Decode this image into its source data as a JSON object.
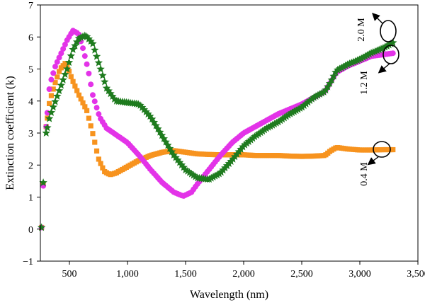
{
  "chart_data": {
    "type": "scatter",
    "xlabel": "Wavelength (nm)",
    "ylabel": "Extinction coefficient (k)",
    "xlim": [
      250,
      3500
    ],
    "ylim": [
      -1,
      7
    ],
    "xticks": [
      500,
      1000,
      1500,
      2000,
      2500,
      3000,
      3500
    ],
    "xtick_labels": [
      "500",
      "1,000",
      "1,500",
      "2,000",
      "2,500",
      "3,000",
      "3,500"
    ],
    "yticks": [
      -1,
      0,
      1,
      2,
      3,
      4,
      5,
      6,
      7
    ],
    "ytick_labels": [
      "−1",
      "0",
      "1",
      "2",
      "3",
      "4",
      "5",
      "6",
      "7"
    ],
    "grid": false,
    "series": [
      {
        "marker": "square",
        "color": "#F7931E",
        "points": [
          [
            260,
            0.05
          ],
          [
            275,
            1.4
          ],
          [
            300,
            3.2
          ],
          [
            330,
            4.0
          ],
          [
            380,
            4.6
          ],
          [
            420,
            5.0
          ],
          [
            470,
            5.2
          ],
          [
            520,
            4.7
          ],
          [
            580,
            4.2
          ],
          [
            650,
            3.7
          ],
          [
            700,
            3.0
          ],
          [
            750,
            2.2
          ],
          [
            800,
            1.8
          ],
          [
            850,
            1.7
          ],
          [
            900,
            1.75
          ],
          [
            1000,
            1.95
          ],
          [
            1100,
            2.15
          ],
          [
            1200,
            2.3
          ],
          [
            1300,
            2.4
          ],
          [
            1400,
            2.45
          ],
          [
            1500,
            2.4
          ],
          [
            1600,
            2.35
          ],
          [
            1700,
            2.33
          ],
          [
            1800,
            2.32
          ],
          [
            1900,
            2.32
          ],
          [
            2000,
            2.32
          ],
          [
            2100,
            2.3
          ],
          [
            2200,
            2.3
          ],
          [
            2300,
            2.3
          ],
          [
            2400,
            2.28
          ],
          [
            2500,
            2.27
          ],
          [
            2600,
            2.28
          ],
          [
            2700,
            2.3
          ],
          [
            2750,
            2.45
          ],
          [
            2800,
            2.55
          ],
          [
            2900,
            2.5
          ],
          [
            3000,
            2.47
          ],
          [
            3100,
            2.47
          ],
          [
            3200,
            2.48
          ],
          [
            3300,
            2.48
          ]
        ]
      },
      {
        "marker": "circle",
        "color": "#E333E8",
        "points": [
          [
            260,
            0.05
          ],
          [
            275,
            1.35
          ],
          [
            300,
            3.2
          ],
          [
            330,
            4.5
          ],
          [
            380,
            5.1
          ],
          [
            430,
            5.5
          ],
          [
            480,
            5.9
          ],
          [
            530,
            6.2
          ],
          [
            580,
            6.1
          ],
          [
            620,
            5.6
          ],
          [
            660,
            5.0
          ],
          [
            700,
            4.2
          ],
          [
            760,
            3.5
          ],
          [
            820,
            3.15
          ],
          [
            900,
            2.95
          ],
          [
            1000,
            2.7
          ],
          [
            1100,
            2.3
          ],
          [
            1200,
            1.85
          ],
          [
            1300,
            1.45
          ],
          [
            1400,
            1.15
          ],
          [
            1480,
            1.03
          ],
          [
            1550,
            1.15
          ],
          [
            1600,
            1.4
          ],
          [
            1700,
            1.85
          ],
          [
            1800,
            2.3
          ],
          [
            1900,
            2.7
          ],
          [
            2000,
            3.0
          ],
          [
            2100,
            3.2
          ],
          [
            2200,
            3.4
          ],
          [
            2300,
            3.6
          ],
          [
            2400,
            3.75
          ],
          [
            2500,
            3.9
          ],
          [
            2600,
            4.1
          ],
          [
            2700,
            4.3
          ],
          [
            2750,
            4.6
          ],
          [
            2800,
            4.9
          ],
          [
            2900,
            5.1
          ],
          [
            3000,
            5.25
          ],
          [
            3100,
            5.4
          ],
          [
            3200,
            5.45
          ],
          [
            3300,
            5.5
          ]
        ]
      },
      {
        "marker": "star",
        "color": "#1E7B1E",
        "points": [
          [
            260,
            0.05
          ],
          [
            275,
            1.45
          ],
          [
            300,
            3.0
          ],
          [
            330,
            3.5
          ],
          [
            380,
            4.0
          ],
          [
            430,
            4.5
          ],
          [
            480,
            5.0
          ],
          [
            530,
            5.6
          ],
          [
            580,
            5.95
          ],
          [
            640,
            6.05
          ],
          [
            700,
            5.8
          ],
          [
            760,
            5.1
          ],
          [
            820,
            4.4
          ],
          [
            900,
            4.0
          ],
          [
            1000,
            3.95
          ],
          [
            1100,
            3.9
          ],
          [
            1200,
            3.5
          ],
          [
            1300,
            2.9
          ],
          [
            1400,
            2.3
          ],
          [
            1500,
            1.85
          ],
          [
            1600,
            1.6
          ],
          [
            1700,
            1.55
          ],
          [
            1800,
            1.75
          ],
          [
            1900,
            2.15
          ],
          [
            2000,
            2.6
          ],
          [
            2100,
            2.9
          ],
          [
            2200,
            3.15
          ],
          [
            2300,
            3.35
          ],
          [
            2400,
            3.6
          ],
          [
            2500,
            3.8
          ],
          [
            2600,
            4.1
          ],
          [
            2700,
            4.3
          ],
          [
            2750,
            4.6
          ],
          [
            2800,
            4.95
          ],
          [
            2900,
            5.15
          ],
          [
            3000,
            5.3
          ],
          [
            3100,
            5.5
          ],
          [
            3200,
            5.65
          ],
          [
            3300,
            5.85
          ]
        ]
      }
    ],
    "annotations": [
      "0.4 M",
      "1.2 M",
      "2.0 M"
    ]
  }
}
